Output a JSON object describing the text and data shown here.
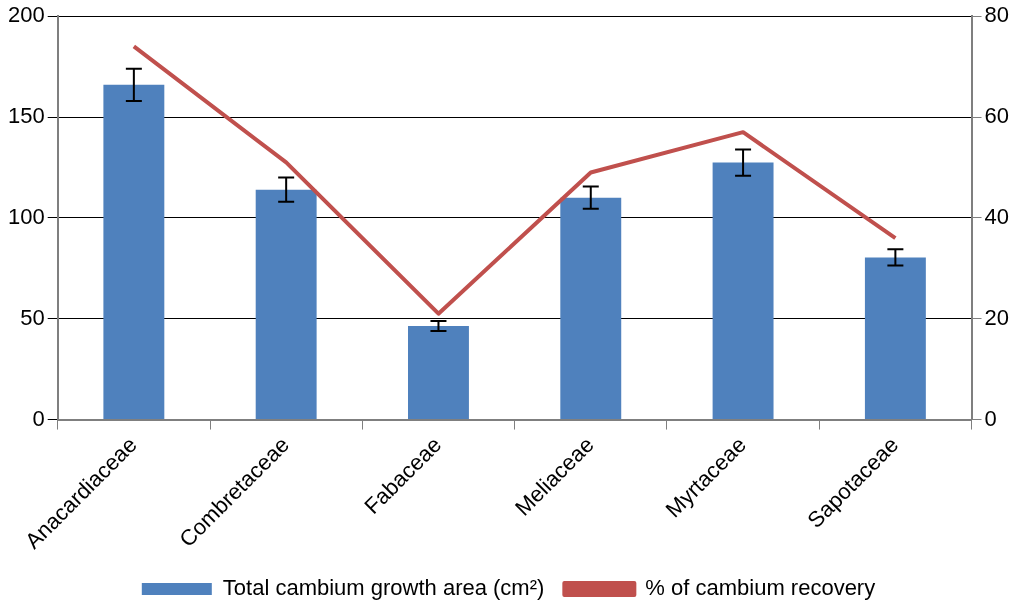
{
  "chart_data": {
    "type": "bar",
    "categories": [
      "Anacardiaceae",
      "Combretaceae",
      "Fabaceae",
      "Meliaceae",
      "Myrtaceae",
      "Sapotaceae"
    ],
    "series": [
      {
        "name": "Total cambium growth area (cm²)",
        "color": "#4f81bd",
        "values": [
          166,
          114,
          46.4,
          110,
          127.4,
          80.4
        ],
        "errors": [
          8,
          6,
          2.5,
          5.5,
          6.5,
          4
        ]
      },
      {
        "name": "% of cambium recovery",
        "type": "line",
        "axis": "y2",
        "color": "#c0504d",
        "values": [
          74,
          51,
          21,
          49,
          57,
          36
        ]
      }
    ],
    "ylim": [
      0,
      200
    ],
    "yticks": [
      0,
      50,
      100,
      150,
      200
    ],
    "y2lim": [
      0,
      80
    ],
    "y2ticks": [
      0,
      20,
      40,
      60,
      80
    ],
    "grid": "y",
    "legend": "bottom",
    "marker": "none"
  }
}
